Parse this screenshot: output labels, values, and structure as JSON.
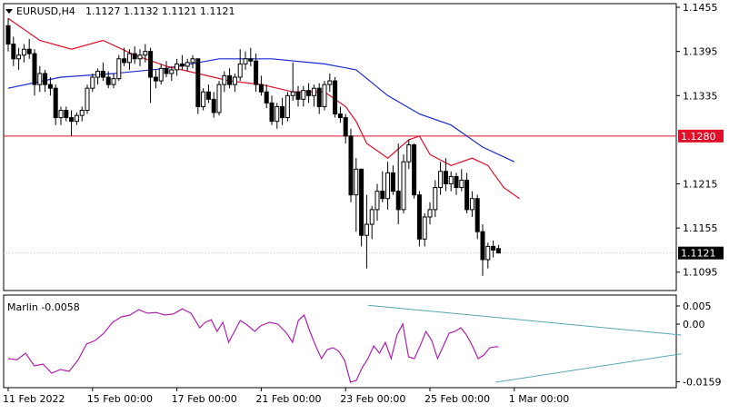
{
  "header": {
    "symbol_timeframe": "EURUSD,H4",
    "ohlc": "1.1127 1.1132 1.1121 1.1121"
  },
  "indicator": {
    "label": "Marlin -0.0058"
  },
  "colors": {
    "background": "#ffffff",
    "grid": "#c0c0c0",
    "candle": "#000000",
    "ma_fast": "#e0102a",
    "ma_slow": "#1a2ad0",
    "horizontal_level": "#e0102a",
    "oscillator": "#b020b0",
    "trendline": "#5aa8b0",
    "price_box": "#e0102a"
  },
  "chart_data": [
    {
      "type": "candlestick",
      "name": "price",
      "ylim": [
        1.107,
        1.146
      ],
      "y_ticks": [
        "1.1455",
        "1.1395",
        "1.1335",
        "1.1215",
        "1.1155",
        "1.1095"
      ],
      "x_tick_labels": [
        "11 Feb 2022",
        "15 Feb 00:00",
        "17 Feb 00:00",
        "21 Feb 00:00",
        "23 Feb 00:00",
        "25 Feb 00:00",
        "1 Mar 00:00"
      ],
      "x_tick_index": [
        0,
        16,
        32,
        48,
        64,
        80,
        96
      ],
      "current_price": "1.1121",
      "horizontal_level": "1.1280",
      "candles": [
        [
          1.143,
          1.144,
          1.1395,
          1.1405
        ],
        [
          1.1405,
          1.1415,
          1.1375,
          1.1385
        ],
        [
          1.1385,
          1.14,
          1.137,
          1.139
        ],
        [
          1.139,
          1.1405,
          1.138,
          1.1398
        ],
        [
          1.1398,
          1.1412,
          1.1385,
          1.1392
        ],
        [
          1.1392,
          1.1398,
          1.1335,
          1.135
        ],
        [
          1.135,
          1.1375,
          1.134,
          1.1365
        ],
        [
          1.1365,
          1.137,
          1.134,
          1.135
        ],
        [
          1.135,
          1.136,
          1.1335,
          1.1345
        ],
        [
          1.1345,
          1.135,
          1.1295,
          1.1305
        ],
        [
          1.1305,
          1.132,
          1.1295,
          1.1315
        ],
        [
          1.1315,
          1.132,
          1.13,
          1.1305
        ],
        [
          1.1305,
          1.1315,
          1.128,
          1.13
        ],
        [
          1.13,
          1.1312,
          1.1295,
          1.1308
        ],
        [
          1.1308,
          1.132,
          1.13,
          1.1315
        ],
        [
          1.1315,
          1.135,
          1.131,
          1.1345
        ],
        [
          1.1345,
          1.1365,
          1.134,
          1.136
        ],
        [
          1.136,
          1.1372,
          1.135,
          1.1368
        ],
        [
          1.1368,
          1.138,
          1.1355,
          1.136
        ],
        [
          1.136,
          1.1368,
          1.1345,
          1.135
        ],
        [
          1.135,
          1.1365,
          1.1345,
          1.1358
        ],
        [
          1.1358,
          1.139,
          1.1355,
          1.1385
        ],
        [
          1.1385,
          1.14,
          1.1375,
          1.138
        ],
        [
          1.138,
          1.1398,
          1.137,
          1.1392
        ],
        [
          1.1392,
          1.1402,
          1.1378,
          1.1385
        ],
        [
          1.1385,
          1.1398,
          1.1375,
          1.139
        ],
        [
          1.139,
          1.1405,
          1.138,
          1.1395
        ],
        [
          1.1395,
          1.14,
          1.1325,
          1.136
        ],
        [
          1.136,
          1.137,
          1.1345,
          1.1355
        ],
        [
          1.1355,
          1.1378,
          1.135,
          1.1372
        ],
        [
          1.1372,
          1.1382,
          1.136,
          1.1365
        ],
        [
          1.1365,
          1.1375,
          1.1355,
          1.137
        ],
        [
          1.137,
          1.1385,
          1.1362,
          1.1378
        ],
        [
          1.1378,
          1.139,
          1.137,
          1.1375
        ],
        [
          1.1375,
          1.1385,
          1.1368,
          1.138
        ],
        [
          1.138,
          1.139,
          1.1372,
          1.1385
        ],
        [
          1.1385,
          1.1385,
          1.131,
          1.132
        ],
        [
          1.132,
          1.1345,
          1.1315,
          1.134
        ],
        [
          1.134,
          1.135,
          1.1325,
          1.133
        ],
        [
          1.133,
          1.134,
          1.1305,
          1.1312
        ],
        [
          1.1312,
          1.1355,
          1.1308,
          1.135
        ],
        [
          1.135,
          1.1368,
          1.134,
          1.1362
        ],
        [
          1.1362,
          1.1372,
          1.1345,
          1.135
        ],
        [
          1.135,
          1.1365,
          1.134,
          1.136
        ],
        [
          1.136,
          1.1398,
          1.1355,
          1.1378
        ],
        [
          1.1378,
          1.1395,
          1.137,
          1.1385
        ],
        [
          1.1385,
          1.14,
          1.1375,
          1.1382
        ],
        [
          1.1382,
          1.1392,
          1.134,
          1.135
        ],
        [
          1.135,
          1.1362,
          1.1335,
          1.134
        ],
        [
          1.134,
          1.135,
          1.1318,
          1.1325
        ],
        [
          1.1325,
          1.1335,
          1.1295,
          1.13
        ],
        [
          1.13,
          1.1325,
          1.129,
          1.132
        ],
        [
          1.132,
          1.1332,
          1.1295,
          1.1305
        ],
        [
          1.1305,
          1.134,
          1.13,
          1.1335
        ],
        [
          1.1335,
          1.138,
          1.1328,
          1.134
        ],
        [
          1.134,
          1.1348,
          1.132,
          1.133
        ],
        [
          1.133,
          1.1348,
          1.132,
          1.1342
        ],
        [
          1.1342,
          1.1352,
          1.1325,
          1.1335
        ],
        [
          1.1335,
          1.135,
          1.132,
          1.1345
        ],
        [
          1.1345,
          1.1352,
          1.131,
          1.132
        ],
        [
          1.132,
          1.1355,
          1.1315,
          1.135
        ],
        [
          1.135,
          1.1365,
          1.134,
          1.1355
        ],
        [
          1.1355,
          1.136,
          1.1305,
          1.131
        ],
        [
          1.131,
          1.132,
          1.1298,
          1.1305
        ],
        [
          1.1305,
          1.131,
          1.127,
          1.128
        ],
        [
          1.128,
          1.129,
          1.119,
          1.12
        ],
        [
          1.12,
          1.125,
          1.115,
          1.1235
        ],
        [
          1.1235,
          1.1235,
          1.113,
          1.1145
        ],
        [
          1.1145,
          1.12,
          1.11,
          1.116
        ],
        [
          1.116,
          1.1185,
          1.114,
          1.118
        ],
        [
          1.118,
          1.1215,
          1.1165,
          1.1205
        ],
        [
          1.1205,
          1.1232,
          1.119,
          1.1195
        ],
        [
          1.1195,
          1.1245,
          1.118,
          1.123
        ],
        [
          1.123,
          1.124,
          1.12,
          1.1205
        ],
        [
          1.1205,
          1.127,
          1.116,
          1.118
        ],
        [
          1.118,
          1.1255,
          1.1175,
          1.1245
        ],
        [
          1.1245,
          1.1275,
          1.1235,
          1.1268
        ],
        [
          1.1268,
          1.127,
          1.1195,
          1.12
        ],
        [
          1.12,
          1.1205,
          1.113,
          1.114
        ],
        [
          1.114,
          1.1175,
          1.113,
          1.117
        ],
        [
          1.117,
          1.119,
          1.116,
          1.118
        ],
        [
          1.118,
          1.122,
          1.117,
          1.121
        ],
        [
          1.121,
          1.1245,
          1.12,
          1.1232
        ],
        [
          1.1232,
          1.125,
          1.1205,
          1.1215
        ],
        [
          1.1215,
          1.1232,
          1.1205,
          1.1225
        ],
        [
          1.1225,
          1.123,
          1.12,
          1.121
        ],
        [
          1.121,
          1.1235,
          1.1205,
          1.122
        ],
        [
          1.122,
          1.123,
          1.1175,
          1.118
        ],
        [
          1.118,
          1.1205,
          1.117,
          1.1195
        ],
        [
          1.1195,
          1.12,
          1.114,
          1.115
        ],
        [
          1.115,
          1.116,
          1.109,
          1.1112
        ],
        [
          1.1112,
          1.1135,
          1.11,
          1.113
        ],
        [
          1.113,
          1.1138,
          1.1115,
          1.1125
        ],
        [
          1.1127,
          1.1132,
          1.1121,
          1.1121
        ]
      ],
      "ma_fast": [
        [
          0,
          1.144
        ],
        [
          6,
          1.141
        ],
        [
          12,
          1.1398
        ],
        [
          18,
          1.141
        ],
        [
          24,
          1.139
        ],
        [
          30,
          1.1375
        ],
        [
          36,
          1.1365
        ],
        [
          42,
          1.1355
        ],
        [
          48,
          1.135
        ],
        [
          54,
          1.134
        ],
        [
          60,
          1.134
        ],
        [
          64,
          1.132
        ],
        [
          66,
          1.13
        ],
        [
          68,
          1.127
        ],
        [
          72,
          1.125
        ],
        [
          76,
          1.1275
        ],
        [
          78,
          1.128
        ],
        [
          80,
          1.1255
        ],
        [
          84,
          1.124
        ],
        [
          88,
          1.125
        ],
        [
          91,
          1.124
        ],
        [
          94,
          1.121
        ],
        [
          97,
          1.1195
        ]
      ],
      "ma_slow": [
        [
          0,
          1.1345
        ],
        [
          10,
          1.136
        ],
        [
          20,
          1.1365
        ],
        [
          30,
          1.1372
        ],
        [
          40,
          1.1385
        ],
        [
          50,
          1.1385
        ],
        [
          60,
          1.1378
        ],
        [
          66,
          1.137
        ],
        [
          72,
          1.1335
        ],
        [
          78,
          1.131
        ],
        [
          84,
          1.1295
        ],
        [
          90,
          1.1265
        ],
        [
          96,
          1.1245
        ]
      ]
    },
    {
      "type": "line",
      "name": "oscillator",
      "ylim": [
        -0.0175,
        0.008
      ],
      "y_ticks": [
        "0.005",
        "0.00",
        "-0.0159"
      ],
      "values": [
        [
          0,
          -0.0095
        ],
        [
          3,
          -0.0098
        ],
        [
          6,
          -0.008
        ],
        [
          9,
          -0.0115
        ],
        [
          12,
          -0.011
        ],
        [
          15,
          -0.0135
        ],
        [
          18,
          -0.0125
        ],
        [
          21,
          -0.013
        ],
        [
          24,
          -0.01
        ],
        [
          27,
          -0.0055
        ],
        [
          30,
          -0.0045
        ],
        [
          33,
          -0.0025
        ],
        [
          36,
          0.0005
        ],
        [
          39,
          0.002
        ],
        [
          42,
          0.0025
        ],
        [
          45,
          0.004
        ],
        [
          48,
          0.003
        ],
        [
          51,
          0.0032
        ],
        [
          54,
          0.0025
        ],
        [
          57,
          0.0028
        ],
        [
          60,
          0.0042
        ],
        [
          63,
          0.003
        ],
        [
          66,
          -0.001
        ],
        [
          68,
          0.0005
        ],
        [
          70,
          0.0012
        ],
        [
          72,
          -0.002
        ],
        [
          74,
          0.0005
        ],
        [
          76,
          -0.005
        ],
        [
          78,
          -0.002
        ],
        [
          80,
          0.001
        ],
        [
          82,
          0.0
        ],
        [
          85,
          -0.002
        ],
        [
          87,
          -0.0005
        ],
        [
          90,
          0.0005
        ],
        [
          93,
          0.0
        ],
        [
          96,
          -0.0025
        ],
        [
          98,
          -0.005
        ],
        [
          100,
          0.001
        ],
        [
          102,
          0.0025
        ],
        [
          104,
          -0.002
        ],
        [
          106,
          -0.006
        ],
        [
          108,
          -0.0095
        ],
        [
          110,
          -0.007
        ],
        [
          112,
          -0.0065
        ],
        [
          114,
          -0.0075
        ],
        [
          116,
          -0.01
        ],
        [
          118,
          -0.016
        ],
        [
          120,
          -0.0155
        ],
        [
          122,
          -0.012
        ],
        [
          124,
          -0.0095
        ],
        [
          126,
          -0.006
        ],
        [
          128,
          -0.008
        ],
        [
          130,
          -0.005
        ],
        [
          132,
          -0.0095
        ],
        [
          134,
          -0.003
        ],
        [
          136,
          0.0
        ],
        [
          138,
          -0.009
        ],
        [
          140,
          -0.0095
        ],
        [
          142,
          -0.006
        ],
        [
          144,
          -0.002
        ],
        [
          146,
          -0.0045
        ],
        [
          148,
          -0.0095
        ],
        [
          150,
          -0.006
        ],
        [
          152,
          -0.0025
        ],
        [
          154,
          -0.002
        ],
        [
          156,
          -0.001
        ],
        [
          158,
          -0.003
        ],
        [
          160,
          -0.006
        ],
        [
          162,
          -0.0095
        ],
        [
          164,
          -0.0085
        ],
        [
          166,
          -0.0065
        ],
        [
          168,
          -0.0062
        ],
        [
          169,
          -0.0063
        ]
      ]
    }
  ]
}
